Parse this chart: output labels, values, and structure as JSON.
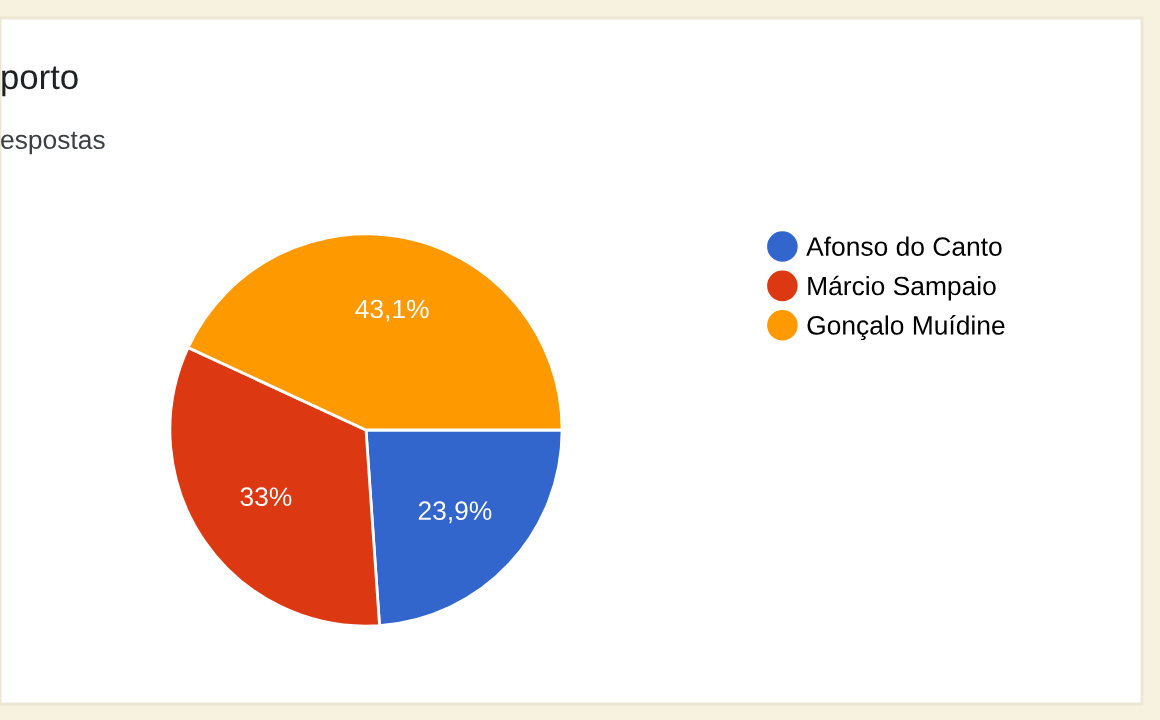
{
  "chart_data": {
    "type": "pie",
    "title": "porto",
    "subtitle": "espostas",
    "categories": [
      "Afonso do Canto",
      "Márcio Sampaio",
      "Gonçalo Muídine"
    ],
    "values": [
      23.9,
      33,
      43.1
    ],
    "value_labels": [
      "23,9%",
      "33%",
      "43,1%"
    ],
    "colors": [
      "#3366cc",
      "#dc3912",
      "#ff9900"
    ],
    "legend": "right"
  }
}
